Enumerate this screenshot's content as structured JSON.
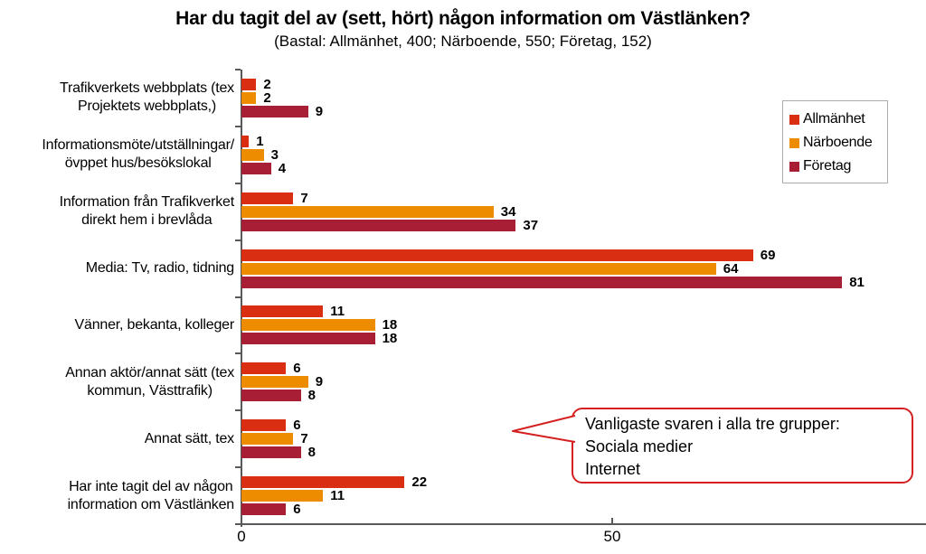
{
  "chart_data": {
    "type": "bar",
    "orientation": "horizontal",
    "title": "Har du tagit del av (sett, hört) någon information om Västlänken?",
    "subtitle": "(Bastal: Allmänhet, 400; Närboende, 550; Företag, 152)",
    "categories": [
      "Trafikverkets webbplats (tex\nProjektets webbplats,)",
      "Informationsmöte/utställningar/\növppet hus/besökslokal",
      "Information från Trafikverket\ndirekt hem i brevlåda",
      "Media: Tv, radio, tidning",
      "Vänner, bekanta, kolleger",
      "Annan aktör/annat sätt (tex\nkommun, Västtrafik)",
      "Annat sätt, tex",
      "Har inte tagit del av någon\ninformation om Västlänken"
    ],
    "series": [
      {
        "name": "Allmänhet",
        "color": "#da2e12",
        "values": [
          2,
          1,
          7,
          69,
          11,
          6,
          6,
          22
        ]
      },
      {
        "name": "Närboende",
        "color": "#ee8c00",
        "values": [
          2,
          3,
          34,
          64,
          18,
          9,
          7,
          11
        ]
      },
      {
        "name": "Företag",
        "color": "#a81e35",
        "values": [
          9,
          4,
          37,
          81,
          18,
          8,
          8,
          6
        ]
      }
    ],
    "x_ticks": [
      0,
      50
    ],
    "xlim": [
      0,
      92
    ],
    "grid": false,
    "legend_position": "top-right",
    "value_labels": true
  },
  "callout": {
    "lines": [
      "Vanligaste svaren i alla tre grupper:",
      "Sociala medier",
      "Internet"
    ],
    "border_color": "#d42020"
  },
  "axis": {
    "color": "#595959"
  }
}
